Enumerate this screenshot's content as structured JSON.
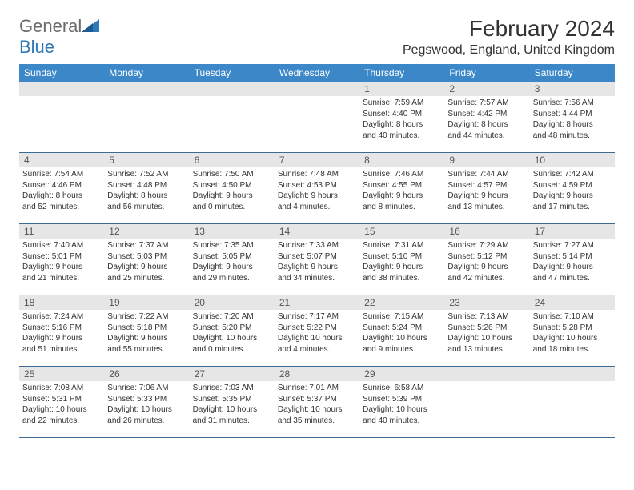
{
  "logo": {
    "text1": "General",
    "text2": "Blue"
  },
  "title": "February 2024",
  "location": "Pegswood, England, United Kingdom",
  "colors": {
    "header_bg": "#3b87c8",
    "header_text": "#ffffff",
    "daynum_bg": "#e6e6e6",
    "border": "#3b6a94",
    "logo_gray": "#6b6b6b",
    "logo_blue": "#2e79b8"
  },
  "weekdays": [
    "Sunday",
    "Monday",
    "Tuesday",
    "Wednesday",
    "Thursday",
    "Friday",
    "Saturday"
  ],
  "weeks": [
    [
      {
        "n": "",
        "sunrise": "",
        "sunset": "",
        "day1": "",
        "day2": ""
      },
      {
        "n": "",
        "sunrise": "",
        "sunset": "",
        "day1": "",
        "day2": ""
      },
      {
        "n": "",
        "sunrise": "",
        "sunset": "",
        "day1": "",
        "day2": ""
      },
      {
        "n": "",
        "sunrise": "",
        "sunset": "",
        "day1": "",
        "day2": ""
      },
      {
        "n": "1",
        "sunrise": "Sunrise: 7:59 AM",
        "sunset": "Sunset: 4:40 PM",
        "day1": "Daylight: 8 hours",
        "day2": "and 40 minutes."
      },
      {
        "n": "2",
        "sunrise": "Sunrise: 7:57 AM",
        "sunset": "Sunset: 4:42 PM",
        "day1": "Daylight: 8 hours",
        "day2": "and 44 minutes."
      },
      {
        "n": "3",
        "sunrise": "Sunrise: 7:56 AM",
        "sunset": "Sunset: 4:44 PM",
        "day1": "Daylight: 8 hours",
        "day2": "and 48 minutes."
      }
    ],
    [
      {
        "n": "4",
        "sunrise": "Sunrise: 7:54 AM",
        "sunset": "Sunset: 4:46 PM",
        "day1": "Daylight: 8 hours",
        "day2": "and 52 minutes."
      },
      {
        "n": "5",
        "sunrise": "Sunrise: 7:52 AM",
        "sunset": "Sunset: 4:48 PM",
        "day1": "Daylight: 8 hours",
        "day2": "and 56 minutes."
      },
      {
        "n": "6",
        "sunrise": "Sunrise: 7:50 AM",
        "sunset": "Sunset: 4:50 PM",
        "day1": "Daylight: 9 hours",
        "day2": "and 0 minutes."
      },
      {
        "n": "7",
        "sunrise": "Sunrise: 7:48 AM",
        "sunset": "Sunset: 4:53 PM",
        "day1": "Daylight: 9 hours",
        "day2": "and 4 minutes."
      },
      {
        "n": "8",
        "sunrise": "Sunrise: 7:46 AM",
        "sunset": "Sunset: 4:55 PM",
        "day1": "Daylight: 9 hours",
        "day2": "and 8 minutes."
      },
      {
        "n": "9",
        "sunrise": "Sunrise: 7:44 AM",
        "sunset": "Sunset: 4:57 PM",
        "day1": "Daylight: 9 hours",
        "day2": "and 13 minutes."
      },
      {
        "n": "10",
        "sunrise": "Sunrise: 7:42 AM",
        "sunset": "Sunset: 4:59 PM",
        "day1": "Daylight: 9 hours",
        "day2": "and 17 minutes."
      }
    ],
    [
      {
        "n": "11",
        "sunrise": "Sunrise: 7:40 AM",
        "sunset": "Sunset: 5:01 PM",
        "day1": "Daylight: 9 hours",
        "day2": "and 21 minutes."
      },
      {
        "n": "12",
        "sunrise": "Sunrise: 7:37 AM",
        "sunset": "Sunset: 5:03 PM",
        "day1": "Daylight: 9 hours",
        "day2": "and 25 minutes."
      },
      {
        "n": "13",
        "sunrise": "Sunrise: 7:35 AM",
        "sunset": "Sunset: 5:05 PM",
        "day1": "Daylight: 9 hours",
        "day2": "and 29 minutes."
      },
      {
        "n": "14",
        "sunrise": "Sunrise: 7:33 AM",
        "sunset": "Sunset: 5:07 PM",
        "day1": "Daylight: 9 hours",
        "day2": "and 34 minutes."
      },
      {
        "n": "15",
        "sunrise": "Sunrise: 7:31 AM",
        "sunset": "Sunset: 5:10 PM",
        "day1": "Daylight: 9 hours",
        "day2": "and 38 minutes."
      },
      {
        "n": "16",
        "sunrise": "Sunrise: 7:29 AM",
        "sunset": "Sunset: 5:12 PM",
        "day1": "Daylight: 9 hours",
        "day2": "and 42 minutes."
      },
      {
        "n": "17",
        "sunrise": "Sunrise: 7:27 AM",
        "sunset": "Sunset: 5:14 PM",
        "day1": "Daylight: 9 hours",
        "day2": "and 47 minutes."
      }
    ],
    [
      {
        "n": "18",
        "sunrise": "Sunrise: 7:24 AM",
        "sunset": "Sunset: 5:16 PM",
        "day1": "Daylight: 9 hours",
        "day2": "and 51 minutes."
      },
      {
        "n": "19",
        "sunrise": "Sunrise: 7:22 AM",
        "sunset": "Sunset: 5:18 PM",
        "day1": "Daylight: 9 hours",
        "day2": "and 55 minutes."
      },
      {
        "n": "20",
        "sunrise": "Sunrise: 7:20 AM",
        "sunset": "Sunset: 5:20 PM",
        "day1": "Daylight: 10 hours",
        "day2": "and 0 minutes."
      },
      {
        "n": "21",
        "sunrise": "Sunrise: 7:17 AM",
        "sunset": "Sunset: 5:22 PM",
        "day1": "Daylight: 10 hours",
        "day2": "and 4 minutes."
      },
      {
        "n": "22",
        "sunrise": "Sunrise: 7:15 AM",
        "sunset": "Sunset: 5:24 PM",
        "day1": "Daylight: 10 hours",
        "day2": "and 9 minutes."
      },
      {
        "n": "23",
        "sunrise": "Sunrise: 7:13 AM",
        "sunset": "Sunset: 5:26 PM",
        "day1": "Daylight: 10 hours",
        "day2": "and 13 minutes."
      },
      {
        "n": "24",
        "sunrise": "Sunrise: 7:10 AM",
        "sunset": "Sunset: 5:28 PM",
        "day1": "Daylight: 10 hours",
        "day2": "and 18 minutes."
      }
    ],
    [
      {
        "n": "25",
        "sunrise": "Sunrise: 7:08 AM",
        "sunset": "Sunset: 5:31 PM",
        "day1": "Daylight: 10 hours",
        "day2": "and 22 minutes."
      },
      {
        "n": "26",
        "sunrise": "Sunrise: 7:06 AM",
        "sunset": "Sunset: 5:33 PM",
        "day1": "Daylight: 10 hours",
        "day2": "and 26 minutes."
      },
      {
        "n": "27",
        "sunrise": "Sunrise: 7:03 AM",
        "sunset": "Sunset: 5:35 PM",
        "day1": "Daylight: 10 hours",
        "day2": "and 31 minutes."
      },
      {
        "n": "28",
        "sunrise": "Sunrise: 7:01 AM",
        "sunset": "Sunset: 5:37 PM",
        "day1": "Daylight: 10 hours",
        "day2": "and 35 minutes."
      },
      {
        "n": "29",
        "sunrise": "Sunrise: 6:58 AM",
        "sunset": "Sunset: 5:39 PM",
        "day1": "Daylight: 10 hours",
        "day2": "and 40 minutes."
      },
      {
        "n": "",
        "sunrise": "",
        "sunset": "",
        "day1": "",
        "day2": ""
      },
      {
        "n": "",
        "sunrise": "",
        "sunset": "",
        "day1": "",
        "day2": ""
      }
    ]
  ]
}
